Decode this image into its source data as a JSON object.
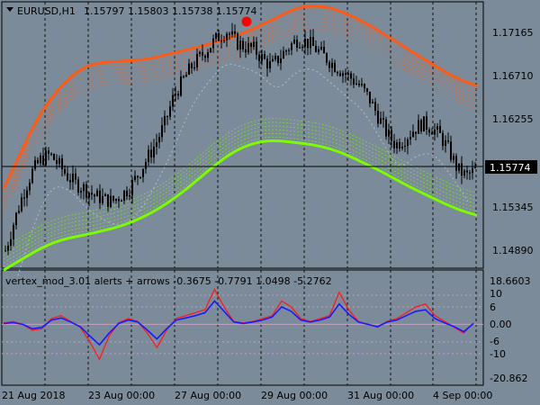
{
  "colors": {
    "background": "#7c8b9a",
    "grid": "#111111",
    "frame": "#000000",
    "candles": "#000000",
    "upper_band": "#ff5a14",
    "lower_band": "#7cfc00",
    "indicator_red": "#ff1a1a",
    "indicator_blue": "#1a1aff",
    "level_lines": "#c0a0c0",
    "marker": "#ff0000"
  },
  "main_chart": {
    "symbol_label": "EURUSD,H1",
    "ohlc_text": "1.15797 1.15803 1.15738 1.15774",
    "current_price_label": "1.15774",
    "price_axis": [
      "1.17165",
      "1.16710",
      "1.16255",
      "1.15774",
      "1.15345",
      "1.14890"
    ],
    "marker_icon": "red-dot-marker"
  },
  "indicator": {
    "label": "vertex_mod_3.01 alerts + arrows -0.3675 -0.7791 1.0498 -5.2762",
    "axis": [
      "18.6603",
      "10",
      "6",
      "0.00",
      "-6",
      "-10",
      "-20.862"
    ]
  },
  "time_axis": [
    "21 Aug 2018",
    "23 Aug 00:00",
    "27 Aug 00:00",
    "29 Aug 00:00",
    "31 Aug 00:00",
    "4 Sep 00:00"
  ],
  "chart_data": [
    {
      "type": "candlestick",
      "title": "EURUSD,H1",
      "ylim": [
        1.1474,
        1.1746
      ],
      "y_ticks": [
        1.17165,
        1.1671,
        1.16255,
        1.15774,
        1.15345,
        1.1489
      ],
      "x_tick_labels": [
        "21 Aug 2018",
        "23 Aug 00:00",
        "27 Aug 00:00",
        "29 Aug 00:00",
        "31 Aug 00:00",
        "4 Sep 00:00"
      ],
      "current_price": 1.15774,
      "trend_close": [
        1.1492,
        1.1522,
        1.155,
        1.1572,
        1.1585,
        1.159,
        1.158,
        1.1568,
        1.156,
        1.1555,
        1.1548,
        1.1545,
        1.1542,
        1.1548,
        1.1556,
        1.157,
        1.1586,
        1.1602,
        1.1622,
        1.165,
        1.1665,
        1.168,
        1.169,
        1.17,
        1.171,
        1.1716,
        1.1705,
        1.17,
        1.1698,
        1.1688,
        1.168,
        1.169,
        1.17,
        1.1708,
        1.1705,
        1.1698,
        1.169,
        1.1682,
        1.1675,
        1.1668,
        1.166,
        1.1648,
        1.163,
        1.1612,
        1.16,
        1.1606,
        1.1615,
        1.1622,
        1.1618,
        1.161,
        1.1595,
        1.1575,
        1.1568,
        1.1574
      ],
      "upper_band_mid": [
        1.1555,
        1.159,
        1.1625,
        1.165,
        1.1668,
        1.168,
        1.1684,
        1.1685,
        1.1686,
        1.1688,
        1.1692,
        1.1696,
        1.17,
        1.1705,
        1.171,
        1.1716,
        1.1724,
        1.1732,
        1.174,
        1.1742,
        1.174,
        1.1734,
        1.1726,
        1.1716,
        1.1706,
        1.1695,
        1.1685,
        1.1675,
        1.1666,
        1.166
      ],
      "lower_band_mid": [
        1.1472,
        1.1482,
        1.1492,
        1.15,
        1.1505,
        1.1508,
        1.1512,
        1.1516,
        1.1522,
        1.153,
        1.154,
        1.1552,
        1.1566,
        1.158,
        1.1592,
        1.16,
        1.1604,
        1.1604,
        1.1602,
        1.16,
        1.1596,
        1.159,
        1.1582,
        1.1574,
        1.1565,
        1.1556,
        1.1548,
        1.154,
        1.1533,
        1.1528
      ]
    },
    {
      "type": "line",
      "title": "vertex_mod_3.01 alerts + arrows",
      "ylim": [
        -20.862,
        18.6603
      ],
      "levels": [
        10,
        6,
        0,
        -6,
        -10
      ],
      "series": [
        {
          "values": [
            0.5,
            1.0,
            0.0,
            -2.0,
            -1.5,
            2.0,
            3.0,
            1.0,
            -1.0,
            -6.0,
            -12.0,
            -4.0,
            0.5,
            2.0,
            1.0,
            -3.0,
            -8.0,
            -2.0,
            2.0,
            3.0,
            4.0,
            5.0,
            12.0,
            6.0,
            1.0,
            0.5,
            1.0,
            2.0,
            3.0,
            8.0,
            6.0,
            2.0,
            1.0,
            2.0,
            3.0,
            11.0,
            5.0,
            1.0,
            0.0,
            -1.0,
            1.0,
            2.0,
            4.0,
            6.0,
            7.0,
            3.0,
            1.0,
            -1.0,
            -3.0,
            0.5
          ]
        },
        {
          "values": [
            0.3,
            0.6,
            0.0,
            -1.5,
            -1.0,
            1.5,
            2.2,
            0.8,
            -0.8,
            -4.0,
            -7.0,
            -3.0,
            0.3,
            1.5,
            0.8,
            -2.0,
            -5.0,
            -1.5,
            1.5,
            2.2,
            3.0,
            4.0,
            8.0,
            4.5,
            0.8,
            0.3,
            0.8,
            1.5,
            2.5,
            6.0,
            4.5,
            1.5,
            0.8,
            1.5,
            2.5,
            7.0,
            3.5,
            0.8,
            0.0,
            -0.8,
            0.8,
            1.5,
            3.0,
            4.5,
            5.0,
            2.0,
            0.5,
            -0.8,
            -2.5,
            0.3
          ]
        }
      ]
    }
  ]
}
